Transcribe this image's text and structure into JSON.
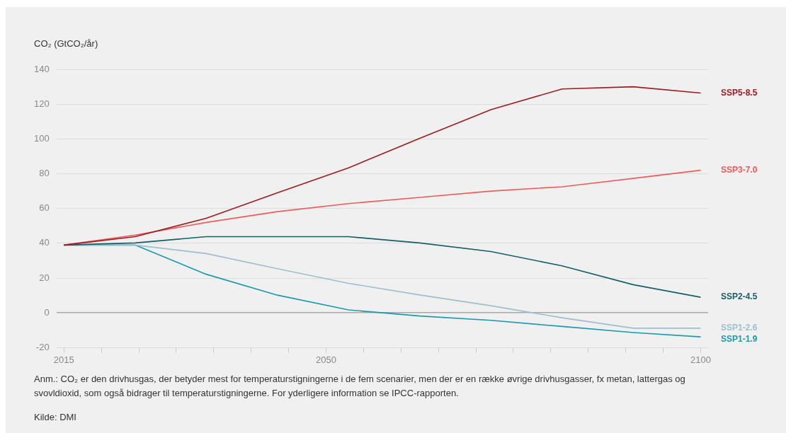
{
  "chart_data": {
    "type": "line",
    "ylabel": "CO₂ (GtCO₂/år)",
    "x": [
      2015,
      2024.5,
      2034,
      2043.5,
      2053,
      2062.5,
      2072,
      2081.5,
      2091,
      2100
    ],
    "series": [
      {
        "name": "SSP5-8.5",
        "color": "#9e1b20",
        "values": [
          39,
          43.8,
          54.4,
          69,
          83.4,
          100.3,
          116.8,
          128.7,
          130,
          126.4
        ]
      },
      {
        "name": "SSP3-7.0",
        "color": "#ef5b5b",
        "values": [
          39,
          44.7,
          52,
          58.2,
          62.8,
          66.4,
          70,
          72.5,
          77.3,
          82
        ]
      },
      {
        "name": "SSP2-4.5",
        "color": "#155f66",
        "values": [
          39,
          40.2,
          43.8,
          43.8,
          43.8,
          40.2,
          35.3,
          27,
          16.2,
          9
        ]
      },
      {
        "name": "SSP1-2.6",
        "color": "#9cc0cc",
        "values": [
          39,
          39,
          34.1,
          25.4,
          17,
          10.3,
          4.1,
          -2.8,
          -8.8,
          -8.8
        ]
      },
      {
        "name": "SSP1-1.9",
        "color": "#1a9aab",
        "values": [
          39,
          39,
          22.2,
          10.2,
          1.7,
          -1.8,
          -4.3,
          -7.8,
          -11.3,
          -13.8
        ]
      }
    ],
    "xlim": [
      2014,
      2101
    ],
    "xticks": [
      2015,
      {
        "value": 2020,
        "label": null
      },
      {
        "value": 2025,
        "label": null
      },
      {
        "value": 2030,
        "label": null
      },
      {
        "value": 2035,
        "label": null
      },
      {
        "value": 2040,
        "label": null
      },
      {
        "value": 2045,
        "label": null
      },
      2050,
      {
        "value": 2055,
        "label": null
      },
      {
        "value": 2060,
        "label": null
      },
      {
        "value": 2065,
        "label": null
      },
      {
        "value": 2070,
        "label": null
      },
      {
        "value": 2075,
        "label": null
      },
      {
        "value": 2080,
        "label": null
      },
      {
        "value": 2085,
        "label": null
      },
      {
        "value": 2090,
        "label": null
      },
      {
        "value": 2095,
        "label": null
      },
      2100
    ],
    "ylim": [
      -20,
      140
    ],
    "yticks": [
      -20,
      0,
      20,
      40,
      60,
      80,
      100,
      120,
      140
    ],
    "grid": "y",
    "legend": false,
    "marker": "none",
    "line_style": "solid",
    "annotations": [
      "Anm.: CO₂ er den drivhusgas, der betyder mest for temperaturstigningerne i de fem scenarier, men der er en række øvrige drivhusgasser, fx metan, lattergas og svovldioxid, som også bidrager til temperaturstigningerne. For yderligere information se IPCC-rapporten.",
      "Kilde: DMI"
    ]
  }
}
